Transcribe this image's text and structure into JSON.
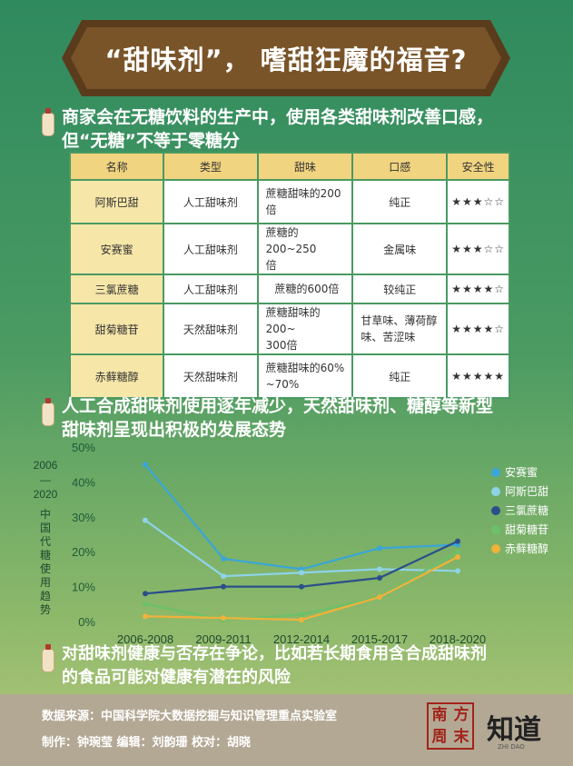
{
  "title": "“甜味剂”， 嗜甜狂魔的福音?",
  "sections": {
    "s1": [
      "商家会在无糖饮料的生产中，使用各类甜味剂改善口感，",
      "但“无糖”不等于零糖分"
    ],
    "s2": [
      "人工合成甜味剂使用逐年减少，天然甜味剂、糖醇等新型",
      "甜味剂呈现出积极的发展态势"
    ],
    "s3": [
      "对甜味剂健康与否存在争论，比如若长期食用含合成甜味剂",
      "的食品可能对健康有潜在的风险"
    ]
  },
  "table": {
    "headers": [
      "名称",
      "类型",
      "甜味",
      "口感",
      "安全性"
    ],
    "rows": [
      {
        "name": "阿斯巴甜",
        "type": "人工甜味剂",
        "sweet": [
          "蔗糖甜味的200",
          "倍"
        ],
        "taste": "纯正",
        "rating": "★★★☆☆"
      },
      {
        "name": "安赛蜜",
        "type": "人工甜味剂",
        "sweet": [
          "蔗糖的 200~250",
          "倍"
        ],
        "taste": "金属味",
        "rating": "★★★☆☆"
      },
      {
        "name": "三氯蔗糖",
        "type": "人工甜味剂",
        "sweet": [
          "蔗糖的600倍"
        ],
        "taste": "较纯正",
        "rating": "★★★★☆"
      },
      {
        "name": "甜菊糖苷",
        "type": "天然甜味剂",
        "sweet": [
          "蔗糖甜味的200~",
          "300倍"
        ],
        "taste": "甘草味、薄荷醇味、苦涩味",
        "rating": "★★★★☆"
      },
      {
        "name": "赤藓糖醇",
        "type": "天然甜味剂",
        "sweet": [
          "蔗糖甜味的60%",
          "~70%"
        ],
        "taste": "纯正",
        "rating": "★★★★★"
      }
    ]
  },
  "chart_data": {
    "type": "line",
    "ylabel_years": [
      "2006",
      "—",
      "2020"
    ],
    "ylabel": "中国代糖使用趋势",
    "categories": [
      "2006-2008",
      "2009-2011",
      "2012-2014",
      "2015-2017",
      "2018-2020"
    ],
    "y_ticks": [
      "0%",
      "10%",
      "20%",
      "30%",
      "40%",
      "50%"
    ],
    "ylim": [
      0,
      50
    ],
    "legend_position": "right",
    "series": [
      {
        "name": "安赛蜜",
        "color": "#3aa6d6",
        "values": [
          45,
          18,
          15,
          21,
          22
        ]
      },
      {
        "name": "阿斯巴甜",
        "color": "#8fd3e8",
        "values": [
          29,
          13,
          14,
          15,
          14.5
        ]
      },
      {
        "name": "三氯蔗糖",
        "color": "#2a4f8a",
        "values": [
          8,
          10,
          10,
          12.5,
          23
        ]
      },
      {
        "name": "甜菊糖苷",
        "color": "#6cc06a",
        "values": [
          5,
          0.5,
          2,
          7,
          20
        ]
      },
      {
        "name": "赤藓糖醇",
        "color": "#f0b23a",
        "values": [
          1.5,
          1,
          0.5,
          7,
          18.5
        ]
      }
    ]
  },
  "footer": {
    "source": "数据来源：中国科学院大数据挖掘与知识管理重点实验室",
    "credits": "制作：钟琬莹   编辑：刘韵珊   校对：胡晓"
  },
  "logos": {
    "seal_chars": [
      "南",
      "方",
      "周",
      "末"
    ],
    "zhidao": "知道",
    "zhidao_sub": "ZHI DAO"
  }
}
